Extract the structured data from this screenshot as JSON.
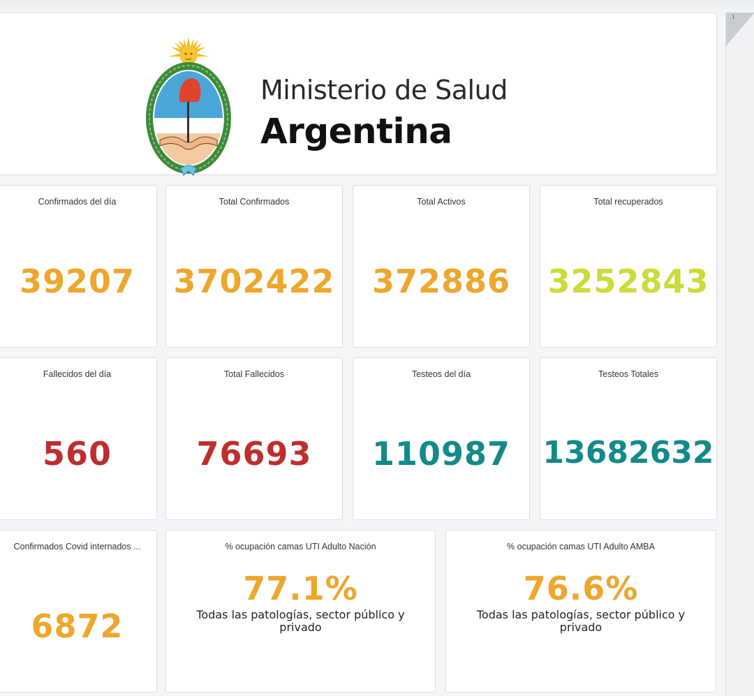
{
  "header": {
    "ministry_line1": "Ministerio de Salud",
    "ministry_line2": "Argentina",
    "emblem_icon": "argentina-coat-of-arms-icon"
  },
  "info_icon_glyph": "i",
  "cards": [
    {
      "title": "Confirmados del día",
      "value": "39207",
      "color": "#eea62c"
    },
    {
      "title": "Total Confirmados",
      "value": "3702422",
      "color": "#eea62c"
    },
    {
      "title": "Total Activos",
      "value": "372886",
      "color": "#eea62c"
    },
    {
      "title": "Total recuperados",
      "value": "3252843",
      "color": "#cbdb3a"
    },
    {
      "title": "Fallecidos del día",
      "value": "560",
      "color": "#bd2f2f"
    },
    {
      "title": "Total Fallecidos",
      "value": "76693",
      "color": "#bd2f2f"
    },
    {
      "title": "Testeos del día",
      "value": "110987",
      "color": "#138a8a"
    },
    {
      "title": "Testeos Totales",
      "value": "13682632",
      "color": "#138a8a"
    },
    {
      "title": "Confirmados Covid internados ...",
      "value": "6872",
      "color": "#eea62c"
    },
    {
      "title": "% ocupación camas UTI Adulto Nación",
      "value": "77.1%",
      "subtitle": "Todas las patologías, sector público y privado",
      "color": "#eea62c"
    },
    {
      "title": "% ocupación camas UTI Adulto AMBA",
      "value": "76.6%",
      "subtitle": "Todas las patologías, sector público y privado",
      "color": "#eea62c"
    }
  ]
}
